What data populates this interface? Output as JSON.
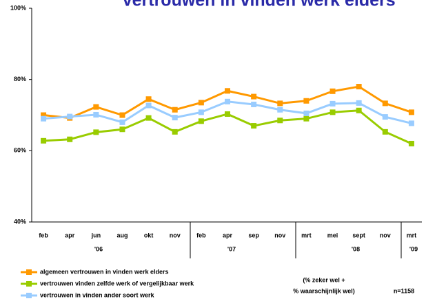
{
  "chart_data": {
    "type": "line",
    "title": "Vertrouwen in vinden werk elders",
    "categories": [
      "feb",
      "apr",
      "jun",
      "aug",
      "okt",
      "nov",
      "feb",
      "apr",
      "sep",
      "nov",
      "mrt",
      "mei",
      "sept",
      "nov",
      "mrt"
    ],
    "years": [
      "'06",
      "'07",
      "'08",
      "'09"
    ],
    "series": [
      {
        "name": "algemeen vertrouwen in vinden werk elders",
        "color": "#ff9900",
        "values": [
          70,
          69.2,
          72.3,
          70,
          74.5,
          71.5,
          73.5,
          76.8,
          75.2,
          73.3,
          74,
          76.7,
          78,
          73.3,
          70.8
        ]
      },
      {
        "name": "vertrouwen vinden zelfde werk of vergelijkbaar werk",
        "color": "#99cc00",
        "values": [
          62.8,
          63.2,
          65.2,
          66,
          69.2,
          65.3,
          68.3,
          70.3,
          67,
          68.5,
          69,
          70.8,
          71.3,
          65.3,
          62
        ]
      },
      {
        "name": "vertrouwen in vinden ander soort werk",
        "color": "#99ccff",
        "values": [
          69,
          69.6,
          70.1,
          68,
          72.7,
          69.3,
          70.8,
          73.8,
          73,
          71.5,
          70.5,
          73.2,
          73.4,
          69.5,
          67.7
        ]
      }
    ],
    "ylim": [
      40,
      100
    ],
    "yticks": [
      {
        "value": 40,
        "label": "40%"
      },
      {
        "value": 60,
        "label": "60%"
      },
      {
        "value": 80,
        "label": "80%"
      },
      {
        "value": 100,
        "label": "100%"
      }
    ],
    "annotations": [
      "(% zeker wel +",
      "% waarschijnlijk wel)",
      "n=1158"
    ]
  }
}
